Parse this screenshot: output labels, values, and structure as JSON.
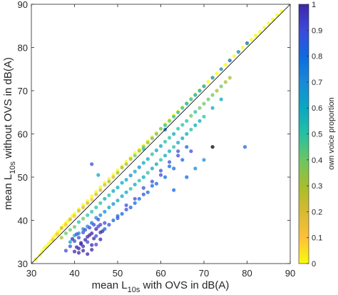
{
  "chart_data": {
    "type": "scatter",
    "title": "",
    "xlabel": {
      "prefix": "mean L",
      "sub": "10s",
      "suffix": " with OVS in dB(A)"
    },
    "ylabel": {
      "prefix": "mean L",
      "sub": "10s",
      "suffix": " without OVS in dB(A)"
    },
    "xlim": [
      30,
      90
    ],
    "ylim": [
      30,
      90
    ],
    "xticks": [
      30,
      40,
      50,
      60,
      70,
      80,
      90
    ],
    "yticks": [
      30,
      40,
      50,
      60,
      70,
      80,
      90
    ],
    "identity_line": true,
    "grid": false,
    "colorbar": {
      "label": "own voice proportion",
      "range": [
        0,
        1
      ],
      "ticks": [
        0,
        0.1,
        0.2,
        0.3,
        0.4,
        0.5,
        0.6,
        0.7,
        0.8,
        0.9,
        1
      ],
      "tick_labels": [
        "0",
        "0.1",
        "0.2",
        "0.3",
        "0.4",
        "0.5",
        "0.6",
        "0.7",
        "0.8",
        "0.9",
        "1"
      ],
      "colormap": "parula-reversed",
      "colors": [
        "#f9fb0e",
        "#fdc03a",
        "#d7ba32",
        "#a5be2d",
        "#6cc564",
        "#25c0a2",
        "#0aa7c3",
        "#1a8ad6",
        "#0f6ae1",
        "#3c4ad9",
        "#3e26a8"
      ]
    },
    "series": [
      {
        "x": [
          31,
          32,
          32.5,
          33,
          33.5,
          34,
          34.5,
          35,
          35.5,
          36,
          36.5,
          37,
          37.5,
          38,
          38.5,
          39,
          39.5,
          40,
          41,
          42,
          43,
          44,
          45,
          46,
          47,
          48,
          49,
          50,
          51,
          52,
          53,
          54,
          55,
          56,
          57,
          58,
          59,
          60,
          61,
          62,
          63,
          64,
          65,
          66,
          67,
          68,
          69,
          70,
          71,
          72,
          73,
          74,
          75,
          76,
          77,
          78,
          79,
          80,
          81,
          82,
          83,
          84,
          85,
          86,
          87,
          88,
          35,
          36,
          37,
          38,
          39,
          40,
          41,
          42,
          43,
          44,
          45,
          46,
          47,
          48,
          49,
          50,
          51,
          52,
          53,
          54,
          55,
          56,
          57,
          58,
          59,
          60,
          61,
          62,
          63,
          64,
          65,
          66,
          67,
          68,
          69,
          70,
          72,
          74,
          76,
          78,
          80,
          37,
          38,
          39,
          40,
          41,
          42,
          43,
          44,
          45,
          46,
          47,
          48,
          49,
          50,
          51,
          52,
          53,
          54,
          55,
          56,
          57,
          58,
          59,
          60,
          61,
          62,
          63,
          64,
          65,
          66,
          67,
          68,
          69,
          70,
          71,
          72,
          73,
          74,
          75,
          76,
          39,
          40,
          41,
          42,
          43,
          44,
          45,
          46,
          47,
          48,
          49,
          50,
          51,
          52,
          53,
          54,
          55,
          56,
          57,
          58,
          59,
          60,
          61,
          62,
          63,
          64,
          65,
          66,
          67,
          68,
          69,
          70,
          72,
          74,
          38,
          39,
          40,
          40.5,
          41,
          41.5,
          42,
          42.5,
          43,
          43.5,
          44,
          44.5,
          45,
          45.5,
          46,
          39.5,
          40.5,
          41.5,
          42.5,
          43.5,
          44.5,
          45.5,
          46.5,
          40,
          41,
          42,
          43,
          44,
          45,
          46,
          47,
          41,
          42,
          43,
          44,
          45,
          46,
          47,
          49,
          51,
          53,
          55,
          57,
          59,
          61,
          63,
          65,
          67,
          48,
          50,
          52,
          54,
          56,
          58,
          60,
          62,
          64,
          66,
          50,
          52,
          54,
          56,
          58,
          60,
          62,
          64,
          44,
          45.5,
          56,
          61,
          79.5,
          63,
          66,
          68,
          70,
          72
        ],
        "y": [
          31,
          32,
          32.8,
          33.6,
          34,
          34.6,
          35.2,
          36,
          36.5,
          37.2,
          37.5,
          38.3,
          38.8,
          39.4,
          39.8,
          40.4,
          41,
          41.5,
          42.6,
          43.6,
          44.5,
          45.6,
          46.6,
          47.7,
          48.7,
          49.6,
          50.6,
          51.6,
          52.5,
          53.6,
          54.5,
          55.6,
          56.4,
          57.3,
          58.4,
          59.3,
          60.3,
          61.2,
          62.3,
          63.2,
          64.3,
          65.2,
          66.2,
          67.2,
          68.2,
          69.2,
          70.1,
          71.1,
          72.1,
          73.1,
          74,
          75,
          76,
          77,
          78,
          79,
          80,
          80.8,
          81.8,
          82.8,
          83.6,
          84.6,
          85.6,
          86.5,
          87.5,
          88.4,
          35.5,
          36.8,
          38.2,
          39,
          40.2,
          41,
          42.2,
          43,
          44,
          44.8,
          46,
          47,
          48.2,
          49,
          50,
          51,
          52.2,
          53,
          54.2,
          55,
          56.1,
          57,
          58,
          59,
          60,
          61.2,
          62,
          63,
          64,
          65,
          66,
          67,
          68,
          69,
          70,
          71,
          73,
          75,
          77,
          79,
          81,
          36,
          37,
          37.8,
          38.5,
          39.6,
          40.4,
          41.2,
          42,
          43,
          44,
          45,
          45.8,
          46.8,
          47.6,
          48.7,
          49.4,
          50.4,
          51.3,
          52.3,
          53.3,
          54.2,
          55.3,
          56.2,
          57.2,
          58.2,
          59.1,
          60,
          61.2,
          62.1,
          63,
          64.2,
          65.1,
          66,
          67,
          68,
          69,
          70,
          71,
          72,
          73,
          35,
          36.5,
          37,
          38,
          38.6,
          39.4,
          40.6,
          41.2,
          42,
          43,
          43.8,
          44.6,
          45.6,
          46.5,
          47.3,
          48.3,
          49.2,
          50,
          51,
          52,
          53,
          54,
          55,
          56,
          57,
          58,
          59,
          60,
          61,
          62,
          63,
          64,
          66,
          68,
          33,
          34,
          35.2,
          33.8,
          36,
          34.5,
          37.2,
          35.5,
          36.2,
          38.3,
          37,
          39,
          38,
          40.2,
          39,
          35.7,
          36.8,
          34.8,
          37.8,
          36.6,
          35.8,
          38.6,
          37.5,
          32.8,
          33.5,
          34,
          35,
          34.3,
          36.4,
          37.2,
          39.4,
          32.5,
          33,
          32.2,
          33.2,
          34.4,
          35.6,
          38,
          40,
          41.5,
          43,
          45,
          46.5,
          48.5,
          50,
          52,
          54,
          56,
          39,
          41,
          42.5,
          44,
          46,
          48,
          50.5,
          52.5,
          55,
          57,
          40.5,
          43.5,
          45,
          47.5,
          49,
          51.5,
          53.5,
          56,
          53,
          50.5,
          56.5,
          61,
          57,
          47,
          50,
          52,
          54,
          57
        ],
        "c": [
          0,
          0,
          0,
          0,
          0,
          0,
          0,
          0,
          0,
          0,
          0,
          0,
          0,
          0,
          0,
          0,
          0,
          0,
          0,
          0,
          0,
          0,
          0,
          0,
          0,
          0,
          0,
          0,
          0,
          0,
          0,
          0,
          0,
          0,
          0,
          0,
          0,
          0,
          0,
          0,
          0,
          0,
          0,
          0,
          0,
          0,
          0,
          0,
          0,
          0,
          0,
          0,
          0,
          0,
          0,
          0,
          0,
          0,
          0,
          0,
          0,
          0,
          0,
          0,
          0,
          0,
          0.1,
          0.1,
          0.15,
          0.1,
          0.15,
          0.1,
          0.15,
          0.15,
          0.2,
          0.1,
          0.2,
          0.15,
          0.2,
          0.25,
          0.2,
          0.25,
          0.3,
          0.25,
          0.3,
          0.35,
          0.3,
          0.35,
          0.3,
          0.4,
          0.35,
          0.4,
          0.45,
          0.4,
          0.5,
          0.45,
          0.5,
          0.55,
          0.5,
          0.6,
          0.55,
          0.6,
          0.65,
          0.7,
          0.75,
          0.7,
          0.75,
          0.3,
          0.35,
          0.4,
          0.35,
          0.45,
          0.4,
          0.45,
          0.5,
          0.45,
          0.5,
          0.55,
          0.5,
          0.55,
          0.6,
          0.55,
          0.6,
          0.65,
          0.6,
          0.65,
          0.55,
          0.6,
          0.5,
          0.6,
          0.55,
          0.5,
          0.45,
          0.55,
          0.5,
          0.45,
          0.5,
          0.4,
          0.45,
          0.4,
          0.35,
          0.4,
          0.35,
          0.3,
          0.35,
          0.3,
          0.25,
          0.55,
          0.6,
          0.7,
          0.65,
          0.7,
          0.75,
          0.7,
          0.65,
          0.7,
          0.6,
          0.65,
          0.6,
          0.55,
          0.6,
          0.5,
          0.55,
          0.5,
          0.55,
          0.45,
          0.55,
          0.6,
          0.5,
          0.6,
          0.55,
          0.5,
          0.6,
          0.55,
          0.6,
          0.5,
          0.55,
          0.6,
          0.5,
          0.6,
          0.55,
          0.85,
          0.9,
          0.85,
          0.95,
          0.9,
          0.95,
          0.9,
          1,
          0.95,
          0.9,
          1,
          0.85,
          0.95,
          0.85,
          0.9,
          0.95,
          0.9,
          1,
          0.85,
          0.95,
          1,
          0.9,
          0.95,
          1,
          0.95,
          1,
          0.9,
          0.95,
          0.9,
          0.95,
          0.85,
          1,
          1,
          1,
          0.95,
          0.9,
          0.95,
          0.75,
          0.8,
          0.75,
          0.8,
          0.75,
          0.8,
          0.75,
          0.8,
          0.75,
          0.8,
          0.85,
          0.85,
          0.8,
          0.85,
          0.8,
          0.85,
          0.8,
          0.85,
          0.8,
          0.85,
          0.8,
          0.9,
          0.85,
          0.9,
          0.85,
          0.9,
          0.85,
          0.9,
          0.9,
          0.85,
          0.6,
          0.45,
          0.8,
          0.75,
          0.8,
          0.75,
          0.7,
          0.65
        ]
      }
    ]
  }
}
